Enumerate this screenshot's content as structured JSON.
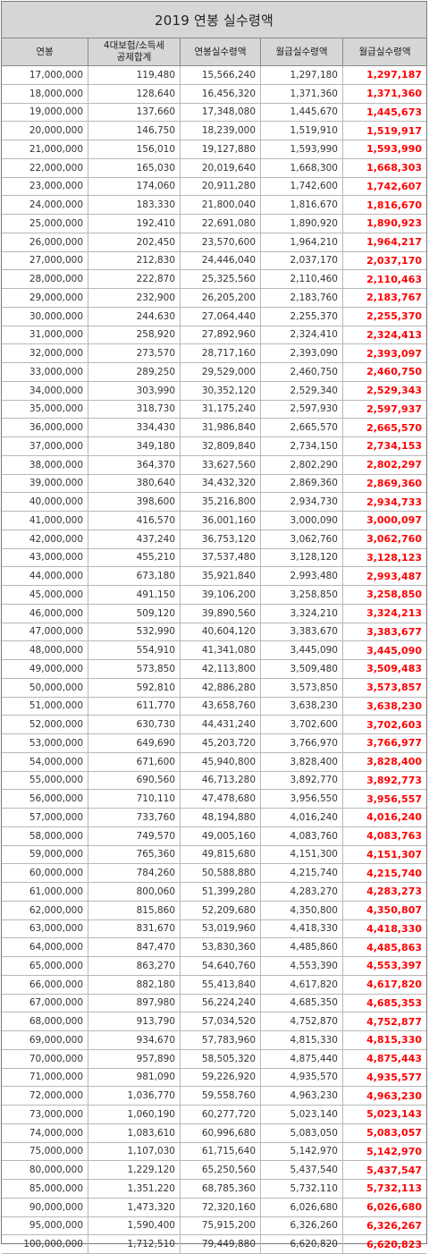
{
  "title": "2019 연봉 실수령액",
  "headers": [
    "연봉",
    "4대보험/소득세\n공제합계",
    "연봉실수령액",
    "월급실수령액",
    "월급실수령액"
  ],
  "rows": [
    [
      "17,000,000",
      "119,480",
      "15,566,240",
      "1,297,180",
      "1,297,187"
    ],
    [
      "18,000,000",
      "128,640",
      "16,456,320",
      "1,371,360",
      "1,371,360"
    ],
    [
      "19,000,000",
      "137,660",
      "17,348,080",
      "1,445,670",
      "1,445,673"
    ],
    [
      "20,000,000",
      "146,750",
      "18,239,000",
      "1,519,910",
      "1,519,917"
    ],
    [
      "21,000,000",
      "156,010",
      "19,127,880",
      "1,593,990",
      "1,593,990"
    ],
    [
      "22,000,000",
      "165,030",
      "20,019,640",
      "1,668,300",
      "1,668,303"
    ],
    [
      "23,000,000",
      "174,060",
      "20,911,280",
      "1,742,600",
      "1,742,607"
    ],
    [
      "24,000,000",
      "183,330",
      "21,800,040",
      "1,816,670",
      "1,816,670"
    ],
    [
      "25,000,000",
      "192,410",
      "22,691,080",
      "1,890,920",
      "1,890,923"
    ],
    [
      "26,000,000",
      "202,450",
      "23,570,600",
      "1,964,210",
      "1,964,217"
    ],
    [
      "27,000,000",
      "212,830",
      "24,446,040",
      "2,037,170",
      "2,037,170"
    ],
    [
      "28,000,000",
      "222,870",
      "25,325,560",
      "2,110,460",
      "2,110,463"
    ],
    [
      "29,000,000",
      "232,900",
      "26,205,200",
      "2,183,760",
      "2,183,767"
    ],
    [
      "30,000,000",
      "244,630",
      "27,064,440",
      "2,255,370",
      "2,255,370"
    ],
    [
      "31,000,000",
      "258,920",
      "27,892,960",
      "2,324,410",
      "2,324,413"
    ],
    [
      "32,000,000",
      "273,570",
      "28,717,160",
      "2,393,090",
      "2,393,097"
    ],
    [
      "33,000,000",
      "289,250",
      "29,529,000",
      "2,460,750",
      "2,460,750"
    ],
    [
      "34,000,000",
      "303,990",
      "30,352,120",
      "2,529,340",
      "2,529,343"
    ],
    [
      "35,000,000",
      "318,730",
      "31,175,240",
      "2,597,930",
      "2,597,937"
    ],
    [
      "36,000,000",
      "334,430",
      "31,986,840",
      "2,665,570",
      "2,665,570"
    ],
    [
      "37,000,000",
      "349,180",
      "32,809,840",
      "2,734,150",
      "2,734,153"
    ],
    [
      "38,000,000",
      "364,370",
      "33,627,560",
      "2,802,290",
      "2,802,297"
    ],
    [
      "39,000,000",
      "380,640",
      "34,432,320",
      "2,869,360",
      "2,869,360"
    ],
    [
      "40,000,000",
      "398,600",
      "35,216,800",
      "2,934,730",
      "2,934,733"
    ],
    [
      "41,000,000",
      "416,570",
      "36,001,160",
      "3,000,090",
      "3,000,097"
    ],
    [
      "42,000,000",
      "437,240",
      "36,753,120",
      "3,062,760",
      "3,062,760"
    ],
    [
      "43,000,000",
      "455,210",
      "37,537,480",
      "3,128,120",
      "3,128,123"
    ],
    [
      "44,000,000",
      "673,180",
      "35,921,840",
      "2,993,480",
      "2,993,487"
    ],
    [
      "45,000,000",
      "491,150",
      "39,106,200",
      "3,258,850",
      "3,258,850"
    ],
    [
      "46,000,000",
      "509,120",
      "39,890,560",
      "3,324,210",
      "3,324,213"
    ],
    [
      "47,000,000",
      "532,990",
      "40,604,120",
      "3,383,670",
      "3,383,677"
    ],
    [
      "48,000,000",
      "554,910",
      "41,341,080",
      "3,445,090",
      "3,445,090"
    ],
    [
      "49,000,000",
      "573,850",
      "42,113,800",
      "3,509,480",
      "3,509,483"
    ],
    [
      "50,000,000",
      "592,810",
      "42,886,280",
      "3,573,850",
      "3,573,857"
    ],
    [
      "51,000,000",
      "611,770",
      "43,658,760",
      "3,638,230",
      "3,638,230"
    ],
    [
      "52,000,000",
      "630,730",
      "44,431,240",
      "3,702,600",
      "3,702,603"
    ],
    [
      "53,000,000",
      "649,690",
      "45,203,720",
      "3,766,970",
      "3,766,977"
    ],
    [
      "54,000,000",
      "671,600",
      "45,940,800",
      "3,828,400",
      "3,828,400"
    ],
    [
      "55,000,000",
      "690,560",
      "46,713,280",
      "3,892,770",
      "3,892,773"
    ],
    [
      "56,000,000",
      "710,110",
      "47,478,680",
      "3,956,550",
      "3,956,557"
    ],
    [
      "57,000,000",
      "733,760",
      "48,194,880",
      "4,016,240",
      "4,016,240"
    ],
    [
      "58,000,000",
      "749,570",
      "49,005,160",
      "4,083,760",
      "4,083,763"
    ],
    [
      "59,000,000",
      "765,360",
      "49,815,680",
      "4,151,300",
      "4,151,307"
    ],
    [
      "60,000,000",
      "784,260",
      "50,588,880",
      "4,215,740",
      "4,215,740"
    ],
    [
      "61,000,000",
      "800,060",
      "51,399,280",
      "4,283,270",
      "4,283,273"
    ],
    [
      "62,000,000",
      "815,860",
      "52,209,680",
      "4,350,800",
      "4,350,807"
    ],
    [
      "63,000,000",
      "831,670",
      "53,019,960",
      "4,418,330",
      "4,418,330"
    ],
    [
      "64,000,000",
      "847,470",
      "53,830,360",
      "4,485,860",
      "4,485,863"
    ],
    [
      "65,000,000",
      "863,270",
      "54,640,760",
      "4,553,390",
      "4,553,397"
    ],
    [
      "66,000,000",
      "882,180",
      "55,413,840",
      "4,617,820",
      "4,617,820"
    ],
    [
      "67,000,000",
      "897,980",
      "56,224,240",
      "4,685,350",
      "4,685,353"
    ],
    [
      "68,000,000",
      "913,790",
      "57,034,520",
      "4,752,870",
      "4,752,877"
    ],
    [
      "69,000,000",
      "934,670",
      "57,783,960",
      "4,815,330",
      "4,815,330"
    ],
    [
      "70,000,000",
      "957,890",
      "58,505,320",
      "4,875,440",
      "4,875,443"
    ],
    [
      "71,000,000",
      "981,090",
      "59,226,920",
      "4,935,570",
      "4,935,577"
    ],
    [
      "72,000,000",
      "1,036,770",
      "59,558,760",
      "4,963,230",
      "4,963,230"
    ],
    [
      "73,000,000",
      "1,060,190",
      "60,277,720",
      "5,023,140",
      "5,023,143"
    ],
    [
      "74,000,000",
      "1,083,610",
      "60,996,680",
      "5,083,050",
      "5,083,057"
    ],
    [
      "75,000,000",
      "1,107,030",
      "61,715,640",
      "5,142,970",
      "5,142,970"
    ],
    [
      "80,000,000",
      "1,229,120",
      "65,250,560",
      "5,437,540",
      "5,437,547"
    ],
    [
      "85,000,000",
      "1,351,220",
      "68,785,360",
      "5,732,110",
      "5,732,113"
    ],
    [
      "90,000,000",
      "1,473,320",
      "72,320,160",
      "6,026,680",
      "6,026,680"
    ],
    [
      "95,000,000",
      "1,590,400",
      "75,915,200",
      "6,326,260",
      "6,326,267"
    ],
    [
      "100,000,000",
      "1,712,510",
      "79,449,880",
      "6,620,820",
      "6,620,823"
    ]
  ],
  "colors": {
    "header_bg": "#d6d6d6",
    "highlight_text": "#ff0000",
    "watermark": "#7ec3d6"
  }
}
